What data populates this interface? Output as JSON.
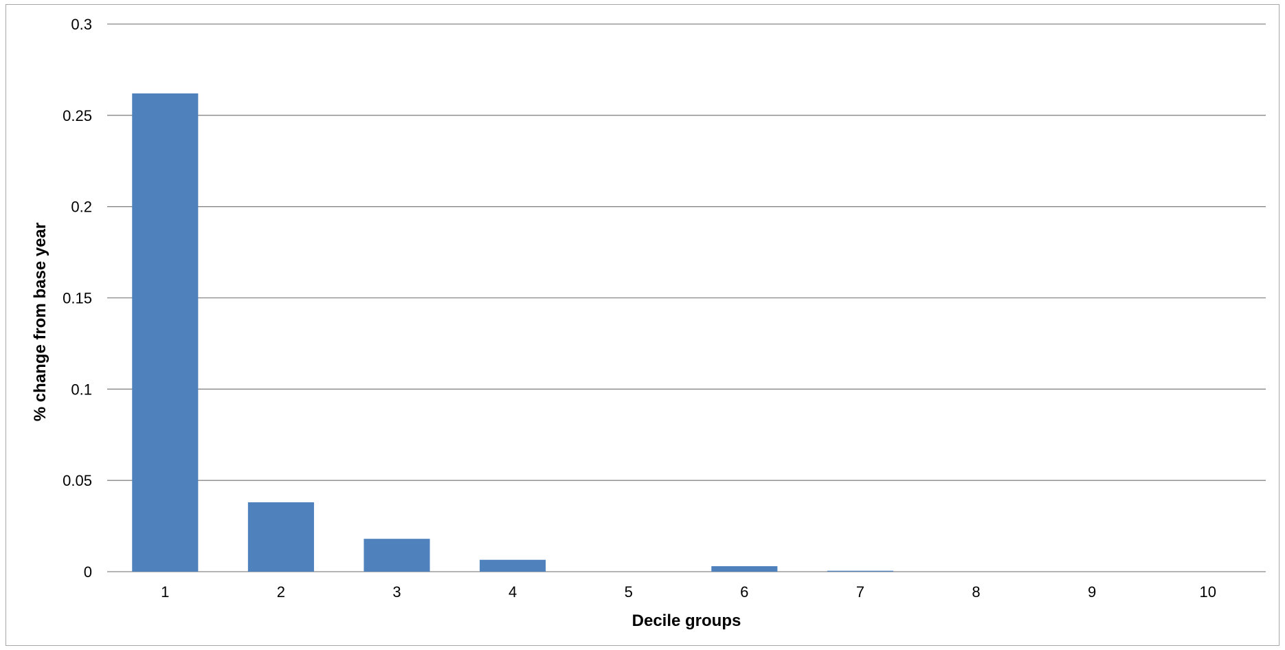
{
  "chart_data": {
    "type": "bar",
    "categories": [
      "1",
      "2",
      "3",
      "4",
      "5",
      "6",
      "7",
      "8",
      "9",
      "10"
    ],
    "values": [
      0.262,
      0.038,
      0.018,
      0.0065,
      0,
      0.003,
      0.0005,
      0,
      0,
      0
    ],
    "title": "",
    "xlabel": "Decile groups",
    "ylabel": "% change from base year",
    "ylim": [
      0,
      0.3
    ],
    "yticks": [
      0,
      0.05,
      0.1,
      0.15,
      0.2,
      0.25,
      0.3
    ],
    "ytick_labels": [
      "0",
      "0.05",
      "0.1",
      "0.15",
      "0.2",
      "0.25",
      "0.3"
    ],
    "grid": true,
    "legend": "none",
    "bar_color": "#4f81bd",
    "grid_color": "#868686"
  }
}
